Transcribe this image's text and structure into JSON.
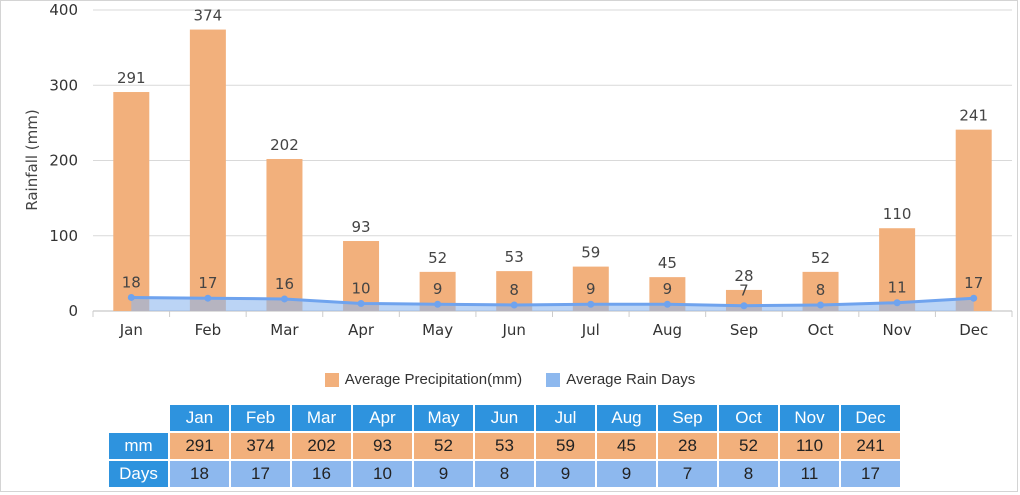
{
  "chart_data": {
    "type": "bar",
    "categories": [
      "Jan",
      "Feb",
      "Mar",
      "Apr",
      "May",
      "Jun",
      "Jul",
      "Aug",
      "Sep",
      "Oct",
      "Nov",
      "Dec"
    ],
    "series": [
      {
        "name": "Average Precipitation(mm)",
        "type": "bar",
        "values": [
          291,
          374,
          202,
          93,
          52,
          53,
          59,
          45,
          28,
          52,
          110,
          241
        ],
        "color": "#f2b07c"
      },
      {
        "name": "Average Rain Days",
        "type": "area",
        "values": [
          18,
          17,
          16,
          10,
          9,
          8,
          9,
          9,
          7,
          8,
          11,
          17
        ],
        "color": "#8db8ee",
        "line_color": "#6fa3ee"
      }
    ],
    "ylabel": "Rainfall (mm)",
    "ylim": [
      0,
      400
    ],
    "yticks": [
      0,
      100,
      200,
      300,
      400
    ],
    "grid": true,
    "legend": "bottom"
  },
  "table": {
    "row_labels": {
      "mm": "mm",
      "days": "Days"
    }
  }
}
